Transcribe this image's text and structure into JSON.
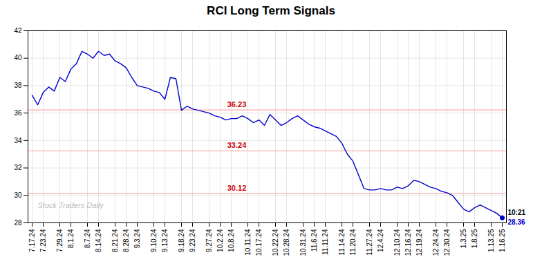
{
  "chart_data": {
    "type": "line",
    "title": "RCI Long Term Signals",
    "color": "#0000cc",
    "grid": true,
    "ylim": [
      28,
      42
    ],
    "yticks": [
      28,
      30,
      32,
      34,
      36,
      38,
      40,
      42
    ],
    "categories": [
      "7.17.24",
      null,
      "7.23.24",
      null,
      null,
      "7.29.24",
      null,
      "8.1.24",
      null,
      null,
      "8.7.24",
      null,
      "8.14.24",
      null,
      null,
      "8.21.24",
      null,
      "8.28.24",
      null,
      "9.3.24",
      null,
      null,
      "9.10.24",
      null,
      "9.13.24",
      null,
      null,
      "9.18.24",
      null,
      "9.23.24",
      null,
      null,
      "9.27.24",
      null,
      "10.2.24",
      null,
      "10.8.24",
      null,
      null,
      "10.11.24",
      null,
      "10.17.24",
      null,
      null,
      "10.22.24",
      null,
      "10.28.24",
      null,
      null,
      "10.31.24",
      null,
      "11.6.24",
      null,
      "11.11.24",
      null,
      null,
      "11.14.24",
      null,
      "11.20.24",
      null,
      null,
      "11.27.24",
      null,
      "12.4.24",
      null,
      null,
      "12.10.24",
      null,
      "12.16.24",
      null,
      "12.19.24",
      null,
      null,
      "12.24.24",
      null,
      "12.30.24",
      null,
      null,
      "1.3.25",
      null,
      "1.8.25",
      null,
      null,
      "1.13.25",
      null,
      "1.16.25"
    ],
    "values": [
      37.3,
      36.6,
      37.5,
      37.9,
      37.6,
      38.6,
      38.3,
      39.2,
      39.6,
      40.5,
      40.3,
      40.0,
      40.5,
      40.2,
      40.3,
      39.8,
      39.6,
      39.3,
      38.6,
      38.0,
      37.9,
      37.8,
      37.6,
      37.5,
      37.0,
      38.6,
      38.5,
      36.2,
      36.5,
      36.3,
      36.2,
      36.1,
      36.0,
      35.8,
      35.7,
      35.5,
      35.6,
      35.6,
      35.8,
      35.6,
      35.3,
      35.5,
      35.1,
      35.9,
      35.5,
      35.1,
      35.3,
      35.6,
      35.8,
      35.5,
      35.2,
      35.0,
      34.9,
      34.7,
      34.5,
      34.3,
      33.8,
      33.0,
      32.5,
      31.5,
      30.5,
      30.4,
      30.4,
      30.5,
      30.4,
      30.4,
      30.6,
      30.5,
      30.7,
      31.1,
      31.0,
      30.8,
      30.6,
      30.5,
      30.3,
      30.2,
      30.0,
      29.5,
      29.0,
      28.8,
      29.1,
      29.3,
      29.1,
      28.9,
      28.7,
      28.36
    ],
    "hlines": [
      {
        "y": 36.23,
        "color": "#ffaaaa",
        "label": "36.23",
        "label_color": "#cc0000"
      },
      {
        "y": 33.24,
        "color": "#ffaaaa",
        "label": "33.24",
        "label_color": "#cc0000"
      },
      {
        "y": 30.12,
        "color": "#ffaaaa",
        "label": "30.12",
        "label_color": "#cc0000"
      }
    ],
    "annotations": [
      {
        "text": "10:21",
        "color": "#000000"
      },
      {
        "text": "28.36",
        "color": "#0000cc"
      }
    ],
    "watermark": {
      "text": "Stock Traders Daily",
      "color": "#bbbbbb"
    }
  }
}
